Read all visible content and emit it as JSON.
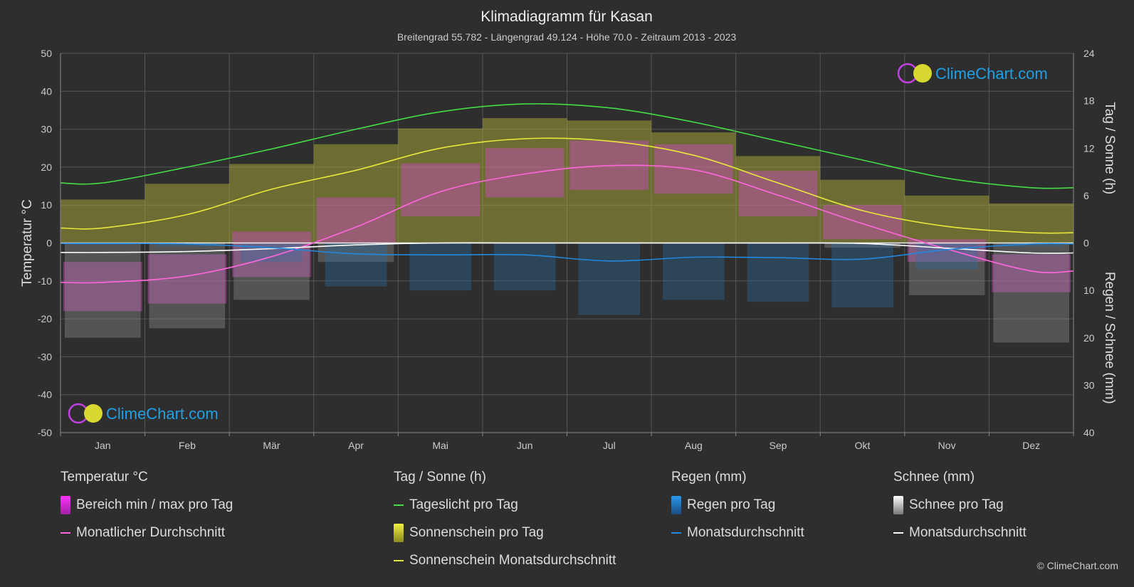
{
  "header": {
    "title": "Klimadiagramm für Kasan",
    "subtitle": "Breitengrad 55.782 - Längengrad 49.124 - Höhe 70.0 - Zeitraum 2013 - 2023"
  },
  "brand": {
    "name": "ClimeChart.com",
    "copyright": "© ClimeChart.com",
    "color": "#1fa0e6"
  },
  "colors": {
    "background": "#2e2e2e",
    "daylight": "#44dd44",
    "sunshine_avg": "#e8e83a",
    "sunshine_bar": "#b8b83a",
    "temp_avg": "#ff66dd",
    "temp_range": "#d04cc0",
    "rain_avg": "#2288dd",
    "rain_bar": "#2a6fa8",
    "snow_avg": "#ffffff",
    "snow_bar": "#9a9a9a"
  },
  "chart_data": {
    "type": "line",
    "x": [
      "Jan",
      "Feb",
      "Mär",
      "Apr",
      "Mai",
      "Jun",
      "Jul",
      "Aug",
      "Sep",
      "Okt",
      "Nov",
      "Dez"
    ],
    "axes": {
      "left": {
        "label": "Temperatur °C",
        "range": [
          -50,
          50
        ],
        "ticks": [
          "50",
          "40",
          "30",
          "20",
          "10",
          "0",
          "-10",
          "-20",
          "-30",
          "-40",
          "-50"
        ]
      },
      "right_top": {
        "label": "Tag / Sonne (h)",
        "range": [
          0,
          24
        ],
        "ticks": [
          "24",
          "18",
          "12",
          "6",
          "0"
        ]
      },
      "right_bottom": {
        "label": "Regen / Schnee (mm)",
        "range": [
          0,
          40
        ],
        "ticks": [
          "0",
          "10",
          "20",
          "30",
          "40"
        ]
      }
    },
    "grid": true,
    "series": [
      {
        "name": "Tageslicht pro Tag",
        "unit": "h",
        "values": [
          7.6,
          9.6,
          11.9,
          14.4,
          16.6,
          17.6,
          17.1,
          15.3,
          12.9,
          10.5,
          8.2,
          7.0
        ]
      },
      {
        "name": "Sonnenschein Monatsdurchschnitt",
        "unit": "h",
        "values": [
          1.9,
          3.6,
          6.8,
          9.2,
          12.0,
          13.2,
          12.9,
          11.1,
          7.6,
          4.1,
          2.1,
          1.3
        ]
      },
      {
        "name": "Sonnenschein pro Tag",
        "unit": "h",
        "values": [
          5.5,
          7.5,
          10.0,
          12.5,
          14.5,
          15.8,
          15.5,
          14.0,
          11.0,
          8.0,
          6.0,
          5.0
        ]
      },
      {
        "name": "Monatlicher Durchschnitt",
        "unit": "°C",
        "values": [
          -10.4,
          -8.7,
          -3.6,
          4.2,
          13.5,
          18.2,
          20.4,
          19.3,
          12.6,
          5.1,
          -1.6,
          -7.4
        ]
      },
      {
        "name": "Bereich min / max pro Tag",
        "unit": "°C",
        "min": [
          -18,
          -16,
          -9,
          0,
          7,
          12,
          14,
          13,
          7,
          1,
          -5,
          -13
        ],
        "max": [
          -5,
          -3,
          3,
          12,
          21,
          25,
          27,
          26,
          19,
          10,
          1,
          -3
        ]
      },
      {
        "name": "Regen Monatsdurchschnitt",
        "unit": "mm",
        "values": [
          0.1,
          0.2,
          1.0,
          2.3,
          2.5,
          2.5,
          3.8,
          3.0,
          3.1,
          3.4,
          1.4,
          0.2
        ]
      },
      {
        "name": "Schnee Monatsdurchschnitt",
        "unit": "mm",
        "values": [
          2.0,
          1.8,
          1.2,
          0.4,
          0.0,
          0.0,
          0.0,
          0.0,
          0.0,
          0.1,
          1.1,
          2.1
        ]
      }
    ]
  },
  "legend": {
    "groups": [
      {
        "title": "Temperatur °C",
        "items": [
          {
            "label": "Bereich min / max pro Tag",
            "kind": "box",
            "color": "#d030d0"
          },
          {
            "label": "Monatlicher Durchschnitt",
            "kind": "line",
            "color": "#ff66dd"
          }
        ]
      },
      {
        "title": "Tag / Sonne (h)",
        "items": [
          {
            "label": "Tageslicht pro Tag",
            "kind": "line",
            "color": "#44dd44"
          },
          {
            "label": "Sonnenschein pro Tag",
            "kind": "box",
            "color": "#c8c83a"
          },
          {
            "label": "Sonnenschein Monatsdurchschnitt",
            "kind": "line",
            "color": "#e8e83a"
          }
        ]
      },
      {
        "title": "Regen (mm)",
        "items": [
          {
            "label": "Regen pro Tag",
            "kind": "box",
            "color": "#2a8ae0"
          },
          {
            "label": "Monatsdurchschnitt",
            "kind": "line",
            "color": "#2288dd"
          }
        ]
      },
      {
        "title": "Schnee (mm)",
        "items": [
          {
            "label": "Schnee pro Tag",
            "kind": "box",
            "color": "#dddddd"
          },
          {
            "label": "Monatsdurchschnitt",
            "kind": "line",
            "color": "#ffffff"
          }
        ]
      }
    ]
  }
}
